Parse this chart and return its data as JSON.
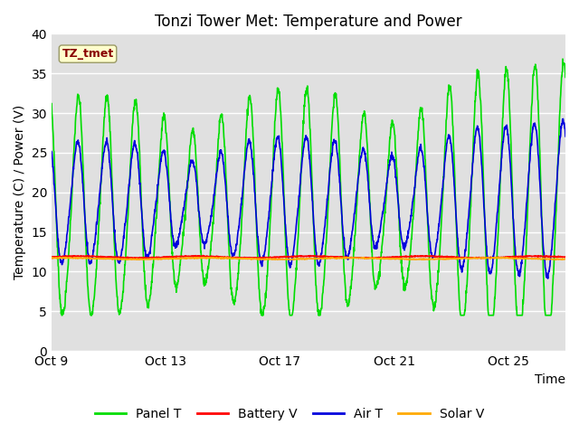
{
  "title": "Tonzi Tower Met: Temperature and Power",
  "ylabel": "Temperature (C) / Power (V)",
  "xlabel": "Time",
  "ylim": [
    0,
    40
  ],
  "yticks": [
    0,
    5,
    10,
    15,
    20,
    25,
    30,
    35,
    40
  ],
  "xtick_labels": [
    "Oct 9",
    "Oct 13",
    "Oct 17",
    "Oct 21",
    "Oct 25"
  ],
  "x_tick_positions": [
    0,
    4,
    8,
    12,
    16
  ],
  "xlim": [
    0,
    18
  ],
  "n_days": 18,
  "bg_color": "#e0e0e0",
  "fig_color": "#ffffff",
  "label_box_text": "TZ_tmet",
  "label_box_facecolor": "#ffffcc",
  "label_box_edgecolor": "#999966",
  "label_box_textcolor": "#880000",
  "legend_labels": [
    "Panel T",
    "Battery V",
    "Air T",
    "Solar V"
  ],
  "panel_t_color": "#00dd00",
  "battery_v_color": "#ff0000",
  "air_t_color": "#0000dd",
  "solar_v_color": "#ffaa00",
  "legend_colors": [
    "#00dd00",
    "#ff0000",
    "#0000dd",
    "#ffaa00"
  ],
  "title_fontsize": 12,
  "axis_fontsize": 10,
  "tick_fontsize": 10,
  "linewidth": 1.2
}
